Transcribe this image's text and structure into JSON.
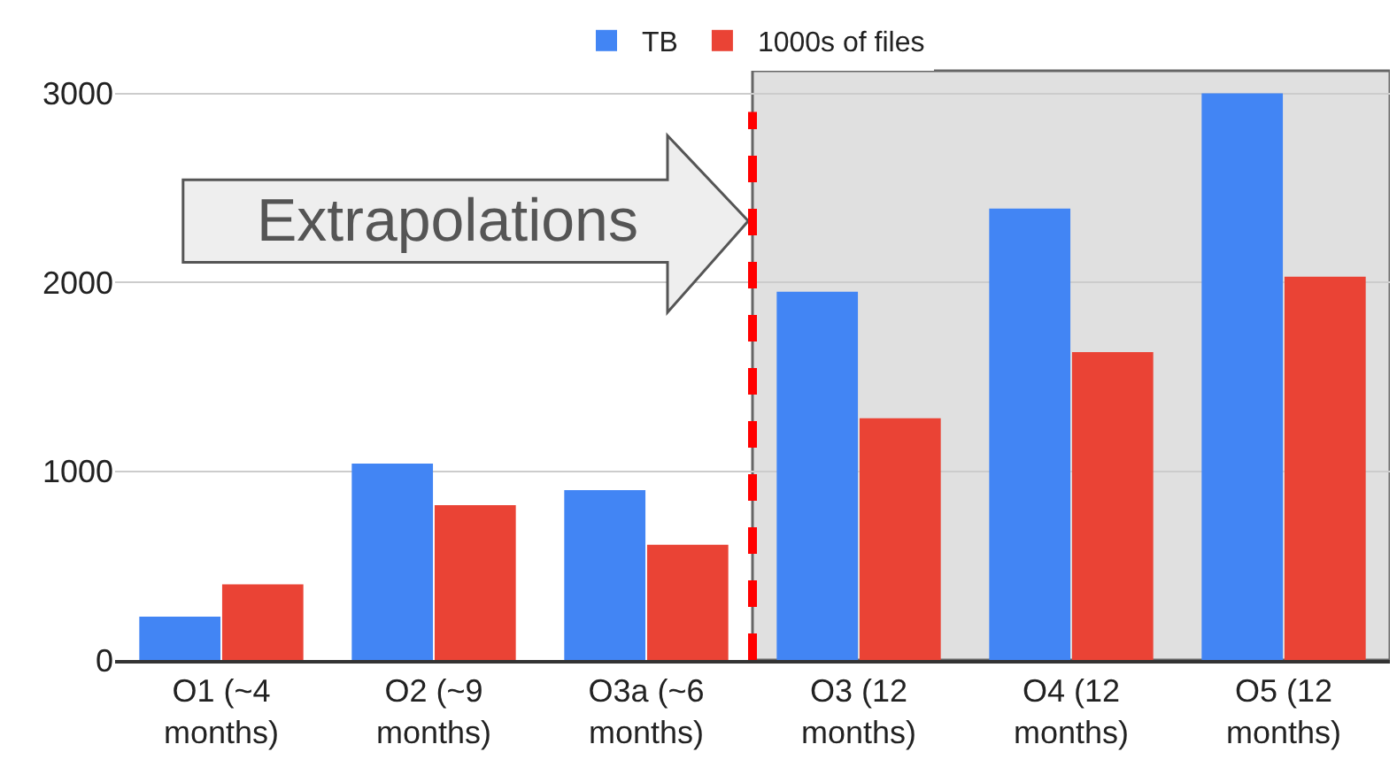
{
  "chart_data": {
    "type": "bar",
    "categories": [
      "O1 (~4 months)",
      "O2 (~9 months)",
      "O3a (~6 months)",
      "O3 (12 months)",
      "O4 (12 months)",
      "O5 (12 months)"
    ],
    "series": [
      {
        "name": "TB",
        "color": "#4285f4",
        "values": [
          230,
          1040,
          900,
          1950,
          2390,
          3000
        ]
      },
      {
        "name": "1000s of files",
        "color": "#ea4335",
        "values": [
          400,
          820,
          610,
          1280,
          1630,
          2030
        ]
      }
    ],
    "ylim": [
      0,
      3120
    ],
    "yticks": [
      0,
      1000,
      2000,
      3000
    ],
    "grid": "y",
    "legend": "top",
    "ref_lines": [
      {
        "axis": "x",
        "value": "O3 (12 months)",
        "color": "#ff0000",
        "line_style": "dashed"
      }
    ],
    "bands": [
      {
        "axis": "x",
        "from": "O3 (12 months)",
        "to": "O5 (12 months)",
        "label": "Extrapolations",
        "color": "#e0e0e0"
      }
    ]
  }
}
